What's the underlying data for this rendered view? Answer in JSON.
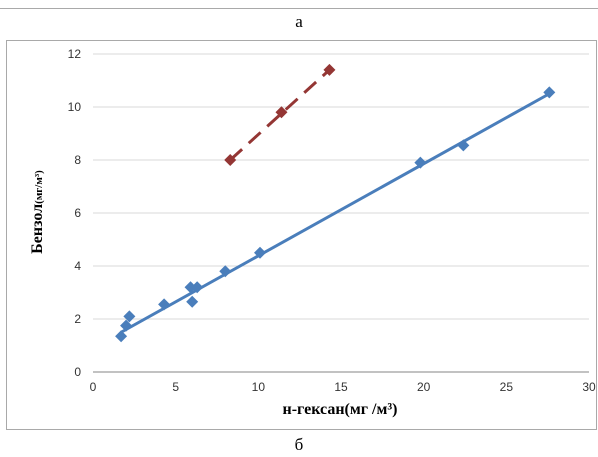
{
  "panel_labels": {
    "top": "а",
    "bottom": "б"
  },
  "chart_data": {
    "type": "scatter",
    "xlabel": "н-гексан(мг /м³)",
    "ylabel": "Бензол(мг/м³)",
    "ylabel_main": "Бензол",
    "ylabel_unit": "(мг/м³)",
    "xlim": [
      0,
      30
    ],
    "ylim": [
      0,
      12
    ],
    "x_ticks": [
      0,
      5,
      10,
      15,
      20,
      25,
      30
    ],
    "y_ticks": [
      0,
      2,
      4,
      6,
      8,
      10,
      12
    ],
    "grid": "horizontal",
    "series": [
      {
        "color": "#4a7ebb",
        "marker": "diamond",
        "points": [
          {
            "x": 1.7,
            "y": 1.35
          },
          {
            "x": 2.0,
            "y": 1.75
          },
          {
            "x": 2.2,
            "y": 2.1
          },
          {
            "x": 4.3,
            "y": 2.55
          },
          {
            "x": 5.9,
            "y": 3.2
          },
          {
            "x": 6.0,
            "y": 2.65
          },
          {
            "x": 6.3,
            "y": 3.2
          },
          {
            "x": 8.0,
            "y": 3.8
          },
          {
            "x": 10.1,
            "y": 4.5
          },
          {
            "x": 19.8,
            "y": 7.9
          },
          {
            "x": 22.4,
            "y": 8.55
          },
          {
            "x": 27.6,
            "y": 10.55
          }
        ],
        "trendline": {
          "style": "solid",
          "from": {
            "x": 1.7,
            "y": 1.5
          },
          "to": {
            "x": 27.6,
            "y": 10.5
          }
        }
      },
      {
        "color": "#943634",
        "marker": "diamond",
        "points": [
          {
            "x": 8.3,
            "y": 8.0
          },
          {
            "x": 11.4,
            "y": 9.8
          },
          {
            "x": 14.3,
            "y": 11.4
          }
        ],
        "trendline": {
          "style": "dashed",
          "from": {
            "x": 8.3,
            "y": 8.0
          },
          "to": {
            "x": 14.3,
            "y": 11.4
          }
        }
      }
    ]
  }
}
